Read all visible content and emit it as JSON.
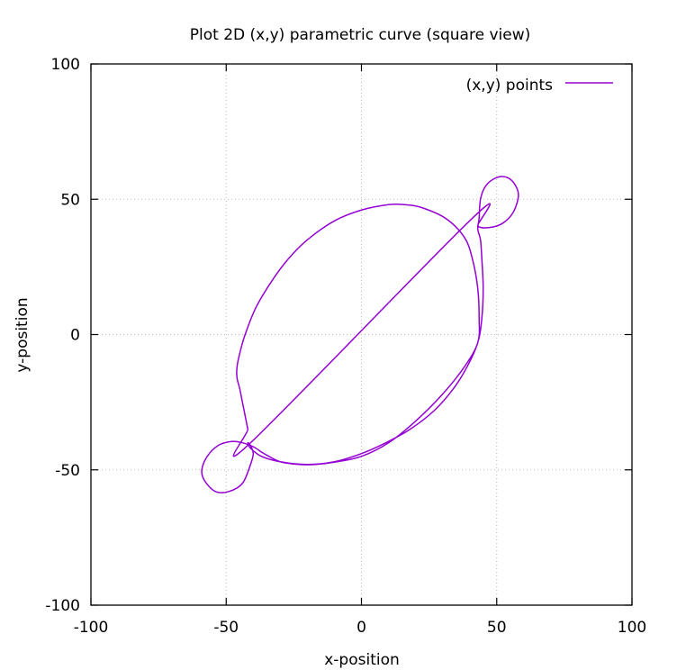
{
  "chart_data": {
    "type": "line",
    "title": "Plot 2D (x,y) parametric curve (square view)",
    "xlabel": "x-position",
    "ylabel": "y-position",
    "xlim": [
      -100,
      100
    ],
    "ylim": [
      -100,
      100
    ],
    "xticks": [
      -100,
      -50,
      0,
      50,
      100
    ],
    "yticks": [
      -100,
      -50,
      0,
      50,
      100
    ],
    "xtick_labels": [
      "-100",
      "-50",
      "0",
      "50",
      "100"
    ],
    "ytick_labels": [
      "-100",
      "-50",
      "0",
      "50",
      "100"
    ],
    "grid": true,
    "legend": {
      "position": "top-right",
      "entries": [
        "(x,y) points"
      ]
    },
    "series": [
      {
        "name": "(x,y) points",
        "color": "#9400d3",
        "x": [
          41,
          43,
          47,
          52,
          56,
          58,
          57,
          54,
          50,
          46,
          44,
          43.5,
          43,
          44,
          44.5,
          45,
          44.5,
          43,
          39,
          34,
          27,
          18,
          9,
          0,
          -10,
          -20,
          -30,
          -37,
          -41,
          -42,
          -41,
          -40,
          -41,
          -44,
          -49,
          -54,
          -58,
          -59,
          -57,
          -53,
          -48,
          -44,
          -41,
          -39,
          -36,
          -30,
          -23,
          -17,
          -9,
          0,
          10,
          20,
          30,
          38,
          43,
          43.5,
          43,
          41,
          38,
          31,
          22,
          16,
          10,
          0,
          -10,
          -20,
          -27,
          -33,
          -39,
          -43,
          -45,
          -46,
          -46,
          -45,
          -44,
          -43,
          -42,
          -41
        ],
        "y": [
          43,
          40,
          39.5,
          41,
          45,
          51,
          55,
          58,
          58,
          55,
          50,
          43,
          39,
          35,
          28,
          17,
          6,
          -3,
          -12,
          -20,
          -28,
          -35,
          -40,
          -44,
          -47,
          -48,
          -47,
          -45,
          -42,
          -40,
          -41,
          -44,
          -48,
          -55,
          -58,
          -58,
          -54,
          -50,
          -45,
          -41,
          -39.5,
          -40,
          -41,
          -42,
          -44,
          -47,
          -48,
          -48,
          -47,
          -45,
          -40,
          -32,
          -22,
          -12,
          -3,
          6,
          17,
          28,
          36,
          43,
          47,
          48,
          48,
          46,
          42,
          35,
          28,
          20,
          10,
          0,
          -7,
          -12,
          -16,
          -20,
          -25,
          -30,
          -35,
          -40
        ]
      }
    ]
  }
}
